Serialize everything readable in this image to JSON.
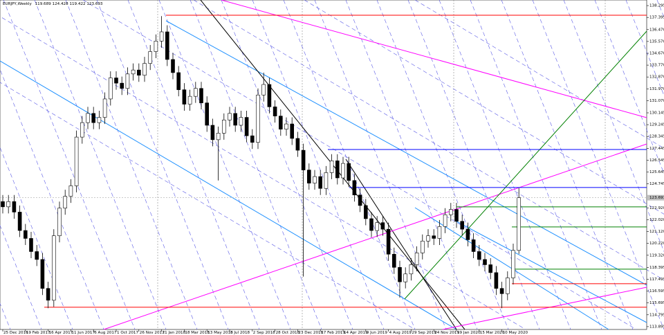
{
  "chart_data": {
    "type": "candlestick",
    "title": "EURJPY,Weekly",
    "up_color": "#ffffff",
    "down_color": "#000000",
    "categories": [
      "25 Dec 2016",
      null,
      null,
      null,
      "19 Feb 2017",
      null,
      null,
      null,
      "16 Apr 2017",
      null,
      null,
      null,
      "11 Jun 2017",
      null,
      null,
      null,
      "6 Aug 2017",
      null,
      null,
      null,
      "1 Oct 2017",
      null,
      null,
      null,
      "26 Nov 2017",
      null,
      null,
      null,
      "21 Jan 2018",
      null,
      null,
      null,
      "18 Mar 2018",
      null,
      null,
      null,
      "13 May 2018",
      null,
      null,
      null,
      "8 Jul 2018",
      null,
      null,
      null,
      "2 Sep 2018",
      null,
      null,
      null,
      "28 Oct 2018",
      null,
      null,
      null,
      "23 Dec 2018",
      null,
      null,
      null,
      "17 Feb 2019",
      null,
      null,
      null,
      "14 Apr 2019",
      null,
      null,
      null,
      "9 Jun 2019",
      null,
      null,
      null,
      "4 Aug 2019",
      null,
      null,
      null,
      "29 Sep 2019",
      null,
      null,
      null,
      "24 Nov 2019",
      null,
      null,
      null,
      "19 Jan 2020",
      null,
      null,
      null,
      "15 Mar 2020",
      null,
      null,
      null,
      "10 May 2020",
      null,
      null,
      null
    ],
    "open": [
      123.4,
      123.0,
      123.4,
      122.6,
      121.2,
      120.6,
      119.6,
      119.0,
      116.8,
      115.9,
      120.8,
      122.9,
      123.8,
      124.6,
      128.3,
      129.4,
      130.1,
      129.4,
      129.8,
      131.2,
      132.8,
      132.4,
      132.0,
      133.1,
      133.4,
      133.0,
      133.9,
      134.8,
      135.6,
      136.3,
      134.2,
      133.2,
      131.9,
      130.8,
      131.4,
      132.0,
      130.9,
      129.2,
      128.1,
      128.6,
      129.6,
      130.1,
      129.2,
      129.8,
      128.4,
      127.9,
      131.5,
      132.3,
      130.6,
      129.9,
      128.9,
      129.3,
      128.2,
      127.3,
      125.8,
      124.8,
      125.3,
      124.4,
      125.6,
      126.5,
      125.2,
      126.3,
      125.0,
      123.9,
      123.1,
      122.1,
      121.2,
      121.8,
      121.3,
      119.4,
      118.4,
      117.3,
      117.9,
      118.6,
      119.5,
      120.4,
      120.8,
      120.6,
      121.5,
      122.4,
      122.8,
      121.9,
      121.3,
      120.5,
      119.6,
      119.0,
      118.6,
      118.0,
      116.8,
      116.4,
      117.6,
      119.689
    ],
    "high": [
      123.9,
      123.9,
      123.9,
      123.1,
      121.7,
      121.1,
      120.1,
      119.5,
      117.3,
      121.3,
      123.4,
      124.3,
      125.1,
      128.8,
      129.9,
      130.6,
      130.6,
      130.3,
      131.7,
      133.3,
      133.3,
      132.9,
      133.6,
      133.9,
      133.9,
      134.4,
      135.3,
      136.1,
      137.5,
      136.8,
      134.7,
      133.7,
      132.4,
      131.9,
      132.5,
      132.5,
      131.4,
      129.7,
      129.1,
      130.1,
      130.6,
      130.6,
      130.3,
      130.3,
      128.9,
      132.0,
      133.2,
      132.8,
      131.1,
      130.4,
      129.8,
      129.8,
      128.7,
      127.8,
      126.3,
      125.8,
      125.8,
      126.1,
      127.0,
      127.0,
      126.8,
      126.8,
      125.5,
      124.4,
      123.6,
      122.6,
      122.3,
      122.3,
      121.8,
      119.9,
      118.9,
      118.4,
      119.1,
      120.0,
      120.9,
      121.3,
      121.3,
      122.0,
      122.9,
      123.3,
      123.3,
      122.4,
      121.8,
      121.0,
      120.1,
      119.5,
      119.1,
      118.5,
      117.3,
      118.1,
      120.2,
      124.428
    ],
    "low": [
      122.5,
      122.5,
      122.1,
      120.7,
      120.1,
      119.1,
      118.5,
      116.3,
      115.3,
      115.4,
      120.3,
      122.4,
      123.3,
      124.1,
      127.8,
      128.9,
      128.9,
      128.9,
      129.3,
      130.7,
      131.9,
      131.5,
      131.5,
      132.6,
      132.5,
      132.5,
      133.4,
      134.3,
      135.1,
      133.7,
      132.7,
      131.4,
      130.3,
      130.3,
      130.9,
      130.4,
      128.7,
      127.6,
      125.0,
      128.1,
      129.1,
      128.7,
      128.7,
      127.9,
      127.4,
      127.4,
      131.0,
      130.1,
      129.4,
      128.4,
      128.4,
      127.7,
      126.8,
      117.7,
      124.3,
      124.3,
      123.9,
      123.9,
      125.1,
      124.7,
      124.7,
      124.5,
      123.4,
      122.6,
      121.6,
      120.7,
      120.7,
      120.8,
      118.9,
      117.9,
      116.1,
      116.8,
      117.4,
      118.1,
      119.0,
      119.9,
      120.1,
      120.1,
      121.0,
      121.9,
      121.4,
      120.8,
      120.0,
      119.1,
      118.5,
      118.1,
      117.5,
      116.3,
      115.3,
      115.9,
      117.1,
      119.422
    ],
    "close": [
      123.0,
      123.4,
      122.6,
      121.2,
      120.6,
      119.6,
      119.0,
      116.8,
      115.9,
      120.8,
      122.9,
      123.8,
      124.6,
      128.3,
      129.4,
      130.1,
      129.4,
      129.8,
      131.2,
      132.8,
      132.4,
      132.0,
      133.1,
      133.4,
      133.0,
      133.9,
      134.8,
      135.6,
      136.3,
      134.2,
      133.2,
      131.9,
      130.8,
      131.4,
      132.0,
      130.9,
      129.2,
      128.1,
      128.6,
      129.6,
      130.1,
      129.2,
      129.8,
      128.4,
      127.9,
      131.5,
      132.3,
      130.6,
      129.9,
      128.9,
      129.3,
      128.2,
      127.3,
      125.8,
      124.8,
      125.3,
      124.4,
      125.6,
      126.5,
      125.2,
      126.3,
      125.0,
      123.9,
      123.1,
      122.1,
      121.2,
      121.8,
      121.3,
      119.4,
      118.4,
      117.3,
      117.9,
      118.6,
      119.5,
      120.4,
      120.8,
      120.6,
      121.5,
      122.4,
      122.8,
      121.9,
      121.3,
      120.5,
      119.6,
      119.0,
      118.6,
      118.0,
      116.8,
      116.4,
      117.6,
      119.689,
      123.693
    ],
    "levels": [
      {
        "value": 137.56,
        "color": "#ff0000"
      },
      {
        "value": 115.37,
        "color": "#ff0000"
      },
      {
        "value": 127.36,
        "color": "#0000ff"
      },
      {
        "value": 124.47,
        "color": "#0000ff"
      },
      {
        "value": 123.0,
        "color": "#008000"
      },
      {
        "value": 121.47,
        "color": "#008000"
      },
      {
        "value": 118.26,
        "color": "#008000"
      },
      {
        "value": 117.16,
        "color": "#ff0000"
      }
    ],
    "ylim": [
      113.68,
      138.72
    ],
    "yticks": [
      138.295,
      137.395,
      {
        "value": 136.47,
        "label": "136.470"
      },
      {
        "value": 135.57,
        "label": "135.570"
      },
      {
        "value": 134.67,
        "label": "134.670"
      },
      {
        "value": 133.77,
        "label": "133.770"
      },
      {
        "value": 132.87,
        "label": "132.870"
      },
      {
        "value": 131.97,
        "label": "131.970"
      },
      {
        "value": 131.07,
        "label": "131.070"
      },
      130.145,
      129.245,
      128.345,
      127.445,
      126.545,
      125.645,
      124.745,
      {
        "value": 122.92,
        "label": "122.920"
      },
      {
        "value": 122.02,
        "label": "122.020"
      },
      {
        "value": 121.12,
        "label": "121.120"
      },
      {
        "value": 120.22,
        "label": "120.220"
      },
      {
        "value": 119.32,
        "label": "119.320"
      },
      118.395,
      117.495,
      116.595,
      115.695,
      114.795,
      113.895
    ]
  }
}
